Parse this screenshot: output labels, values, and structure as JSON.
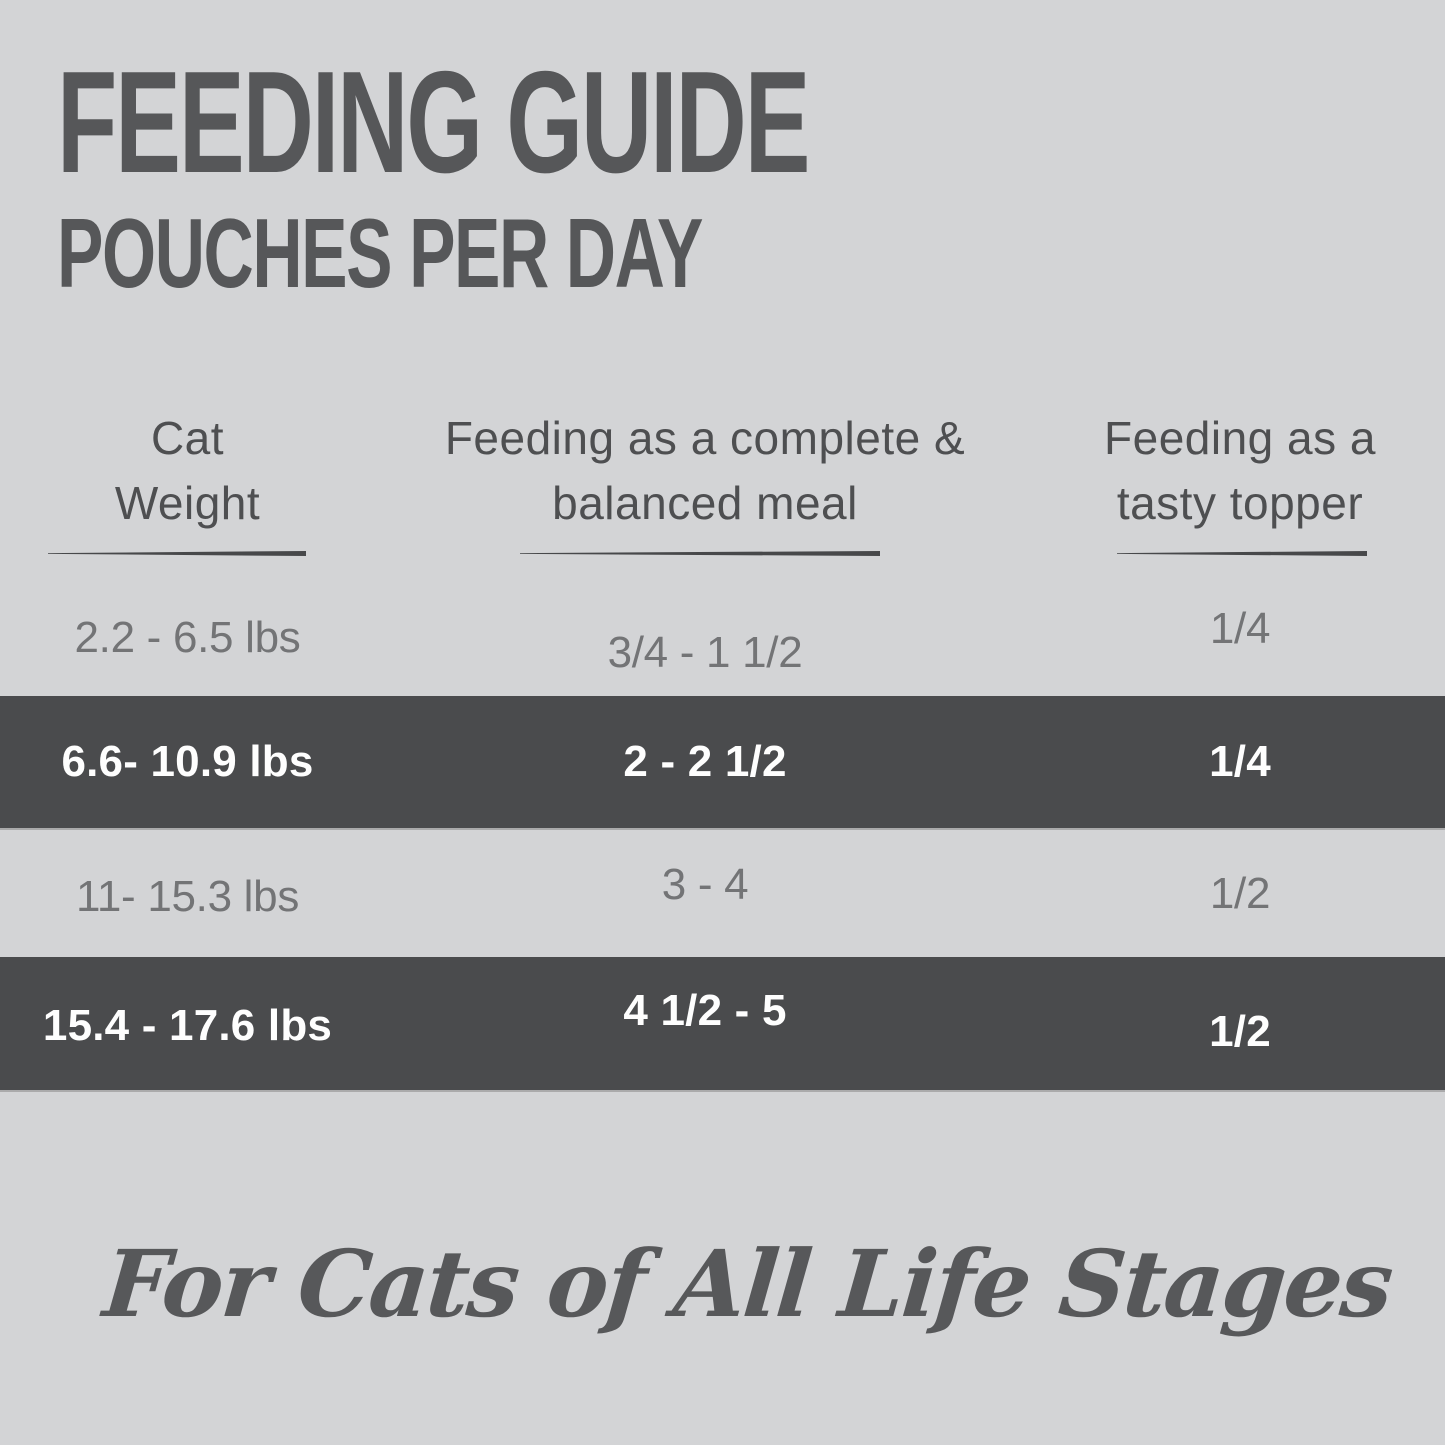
{
  "chart_data": {
    "type": "table",
    "title": "FEEDING GUIDE",
    "subtitle": "POUCHES PER DAY",
    "column_headers": [
      {
        "line1": "Cat",
        "line2": "Weight"
      },
      {
        "line1": "Feeding as a complete &",
        "line2": "balanced meal"
      },
      {
        "line1": "Feeding as a",
        "line2": "tasty topper"
      }
    ],
    "rows": [
      {
        "cat_weight": "2.2 - 6.5 lbs",
        "complete_meal": "3/4 - 1 1/2",
        "tasty_topper": "1/4",
        "highlighted": false
      },
      {
        "cat_weight": "6.6- 10.9 lbs",
        "complete_meal": "2 - 2 1/2",
        "tasty_topper": "1/4",
        "highlighted": true
      },
      {
        "cat_weight": "11- 15.3 lbs",
        "complete_meal": "3 - 4",
        "tasty_topper": "1/2",
        "highlighted": false
      },
      {
        "cat_weight": "15.4 - 17.6 lbs",
        "complete_meal": "4 1/2 - 5",
        "tasty_topper": "1/2",
        "highlighted": true
      }
    ],
    "footer_note": "For Cats of All Life Stages",
    "layout": {
      "grid": false,
      "legend": "none",
      "units": "pouches per day"
    }
  },
  "colors": {
    "background": "#d3d4d6",
    "dark_row": "#4a4b4d",
    "title_text": "#565759",
    "header_text": "#4e4f51",
    "light_row_text": "#737476",
    "dark_row_text": "#fefefe",
    "underline": "#3b3c3e",
    "script_text": "#57585a"
  }
}
